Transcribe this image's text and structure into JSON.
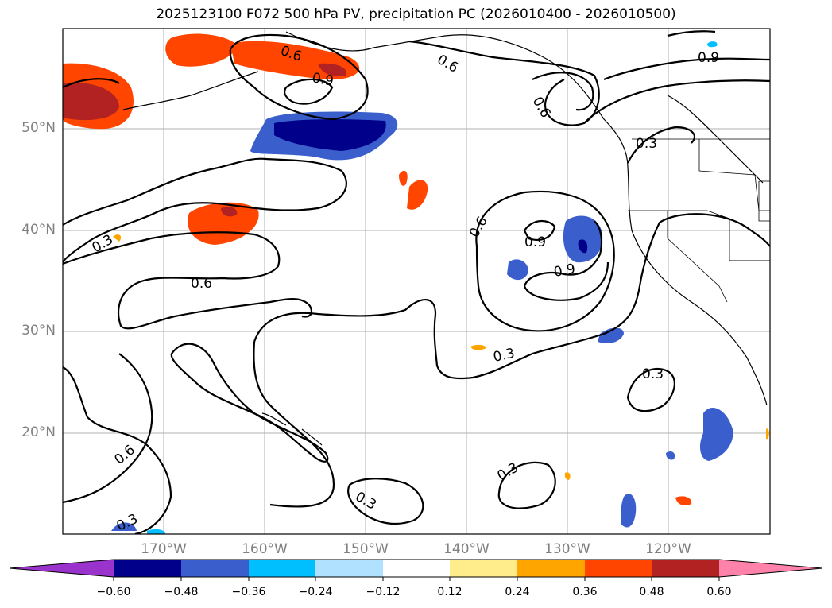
{
  "title": "2025123100 F072 500 hPa PV, precipitation PC (2026010400 - 2026010500)",
  "map": {
    "lat_labels": [
      "50°N",
      "40°N",
      "30°N",
      "20°N"
    ],
    "lon_labels": [
      "170°W",
      "160°W",
      "150°W",
      "140°W",
      "130°W",
      "120°W"
    ],
    "contour_labels": [
      "0.6",
      "0.6",
      "0.9",
      "0.9",
      "0.6",
      "0.3",
      "0.3",
      "0.6",
      "0.9",
      "0.9",
      "0.6",
      "0.3",
      "0.3",
      "0.6",
      "0.3",
      "0.3",
      "0.3"
    ],
    "land_color": "#ffffff",
    "grid": true
  },
  "colorbar": {
    "ticks": [
      "−0.60",
      "−0.48",
      "−0.36",
      "−0.24",
      "−0.12",
      "0.12",
      "0.24",
      "0.36",
      "0.48",
      "0.60"
    ],
    "colors": [
      "#9933cc",
      "#00008b",
      "#3a5fcd",
      "#00bfff",
      "#b0e2ff",
      "#ffffff",
      "#ffec8b",
      "#ffa500",
      "#ff4500",
      "#b22222",
      "#ff82ab"
    ]
  }
}
